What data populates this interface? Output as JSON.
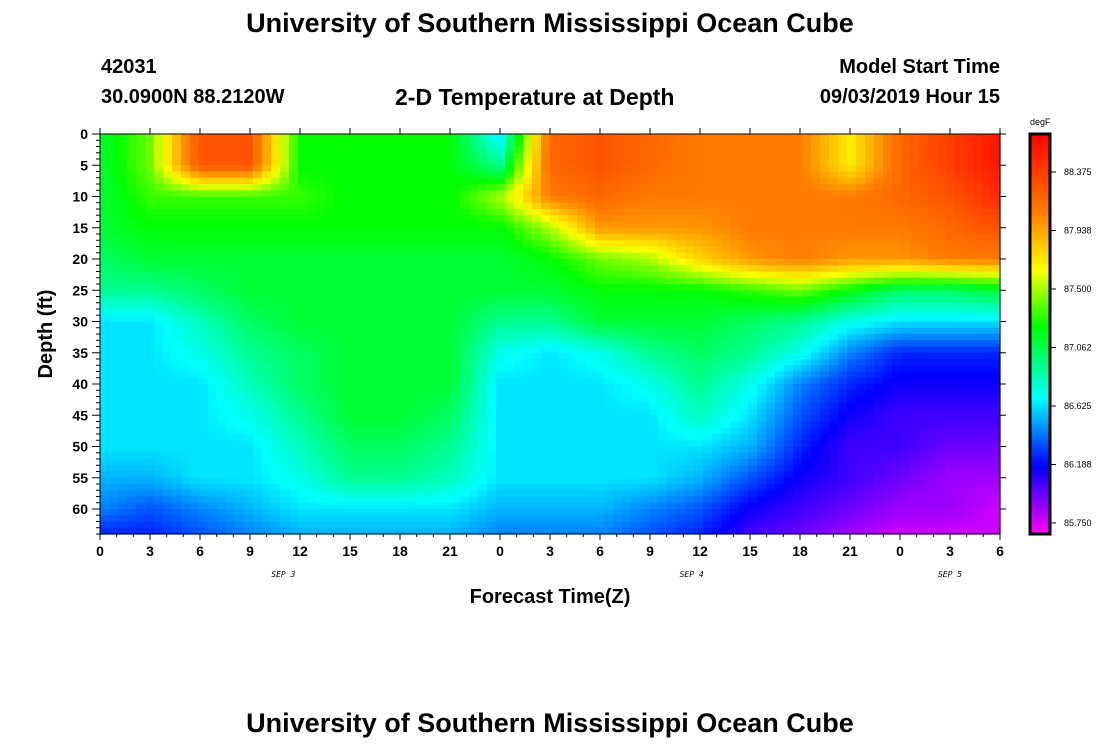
{
  "header": {
    "title": "University of Southern Mississippi Ocean Cube",
    "station_id": "42031",
    "location": "30.0900N 88.2120W",
    "model_label": "Model Start Time",
    "model_time": "09/03/2019 Hour 15"
  },
  "footer": {
    "title": "University of Southern Mississippi Ocean Cube"
  },
  "colors": {
    "min": "#ff00ff",
    "low": "#0000ff",
    "mid_low": "#00ffff",
    "mid": "#00ff00",
    "mid_high": "#ffff00",
    "high": "#ff8000",
    "max": "#ff0000"
  },
  "chart_data": {
    "type": "heatmap",
    "title": "2-D Temperature at Depth",
    "xlabel": "Forecast Time(Z)",
    "ylabel": "Depth (ft)",
    "x_tick_labels": [
      "0",
      "3",
      "6",
      "9",
      "12",
      "15",
      "18",
      "21",
      "0",
      "3",
      "6",
      "9",
      "12",
      "15",
      "18",
      "21",
      "0",
      "3",
      "6"
    ],
    "x_range_hours": [
      0,
      54
    ],
    "day_labels": [
      {
        "label": "SEP 3",
        "hour": 11
      },
      {
        "label": "SEP 4",
        "hour": 35.5
      },
      {
        "label": "SEP 5",
        "hour": 51
      }
    ],
    "y_tick_labels": [
      "0",
      "5",
      "10",
      "15",
      "20",
      "25",
      "30",
      "35",
      "40",
      "45",
      "50",
      "55",
      "60"
    ],
    "y_range_ft": [
      0,
      64
    ],
    "colorbar": {
      "unit": "degF",
      "labels": [
        "88.375",
        "87.938",
        "87.500",
        "87.062",
        "86.625",
        "86.188",
        "85.750"
      ],
      "range": [
        85.5,
        88.6
      ]
    },
    "grid_summary": {
      "x_hours": [
        0,
        3,
        6,
        9,
        12,
        15,
        18,
        21,
        24,
        27,
        30,
        33,
        36,
        39,
        42,
        45,
        48,
        51,
        54
      ],
      "depth_ft": [
        0,
        5,
        10,
        15,
        20,
        25,
        30,
        35,
        40,
        45,
        50,
        55,
        60,
        64
      ],
      "values": [
        [
          87.0,
          87.3,
          88.2,
          88.2,
          87.1,
          87.1,
          87.1,
          87.1,
          86.5,
          88.1,
          88.2,
          88.1,
          88.0,
          88.0,
          88.0,
          87.6,
          88.1,
          88.3,
          88.5
        ],
        [
          87.0,
          87.3,
          88.2,
          88.2,
          87.1,
          87.1,
          87.1,
          87.1,
          86.8,
          88.1,
          88.2,
          88.1,
          88.0,
          88.0,
          88.0,
          87.6,
          88.1,
          88.3,
          88.5
        ],
        [
          87.0,
          87.2,
          87.2,
          87.2,
          87.2,
          87.1,
          87.1,
          87.1,
          87.4,
          88.0,
          88.1,
          88.0,
          88.0,
          88.0,
          88.0,
          88.0,
          88.1,
          88.2,
          88.4
        ],
        [
          87.0,
          87.1,
          87.1,
          87.1,
          87.1,
          87.1,
          87.1,
          87.1,
          87.1,
          87.4,
          87.9,
          87.9,
          87.9,
          88.0,
          88.0,
          88.0,
          88.0,
          88.1,
          88.2
        ],
        [
          86.9,
          87.0,
          87.0,
          87.0,
          87.0,
          87.0,
          87.0,
          87.0,
          87.0,
          87.1,
          87.3,
          87.4,
          87.7,
          87.9,
          88.0,
          87.9,
          87.9,
          88.0,
          88.0
        ],
        [
          86.8,
          86.8,
          86.9,
          87.0,
          87.0,
          87.0,
          87.0,
          87.0,
          87.0,
          87.0,
          87.1,
          87.1,
          87.1,
          87.2,
          87.3,
          87.1,
          86.9,
          86.9,
          87.0
        ],
        [
          86.5,
          86.5,
          86.7,
          86.9,
          87.0,
          87.0,
          87.0,
          87.0,
          86.8,
          86.8,
          87.0,
          87.0,
          87.0,
          86.9,
          86.8,
          86.6,
          86.5,
          86.5,
          86.5
        ],
        [
          86.5,
          86.5,
          86.6,
          86.8,
          86.9,
          87.0,
          87.0,
          87.0,
          86.6,
          86.5,
          86.6,
          86.8,
          86.9,
          86.8,
          86.6,
          86.3,
          86.1,
          86.1,
          86.1
        ],
        [
          86.5,
          86.5,
          86.5,
          86.7,
          86.9,
          87.0,
          87.0,
          87.0,
          86.5,
          86.5,
          86.5,
          86.6,
          86.8,
          86.6,
          86.3,
          86.1,
          86.0,
          86.0,
          86.0
        ],
        [
          86.5,
          86.5,
          86.5,
          86.6,
          86.8,
          87.0,
          87.0,
          86.9,
          86.5,
          86.5,
          86.5,
          86.5,
          86.7,
          86.5,
          86.2,
          86.0,
          85.9,
          85.9,
          85.9
        ],
        [
          86.5,
          86.5,
          86.5,
          86.5,
          86.7,
          86.9,
          86.9,
          86.8,
          86.5,
          86.5,
          86.5,
          86.5,
          86.5,
          86.4,
          86.1,
          85.9,
          85.9,
          85.8,
          85.8
        ],
        [
          86.4,
          86.4,
          86.5,
          86.5,
          86.6,
          86.8,
          86.8,
          86.7,
          86.5,
          86.5,
          86.5,
          86.5,
          86.4,
          86.2,
          86.0,
          85.9,
          85.8,
          85.7,
          85.7
        ],
        [
          86.3,
          86.2,
          86.3,
          86.4,
          86.5,
          86.5,
          86.5,
          86.5,
          86.4,
          86.4,
          86.4,
          86.3,
          86.2,
          86.0,
          85.9,
          85.8,
          85.7,
          85.7,
          85.6
        ],
        [
          86.1,
          86.1,
          86.2,
          86.3,
          86.4,
          86.4,
          86.4,
          86.4,
          86.3,
          86.3,
          86.3,
          86.2,
          86.1,
          85.9,
          85.8,
          85.7,
          85.6,
          85.6,
          85.6
        ]
      ]
    }
  }
}
